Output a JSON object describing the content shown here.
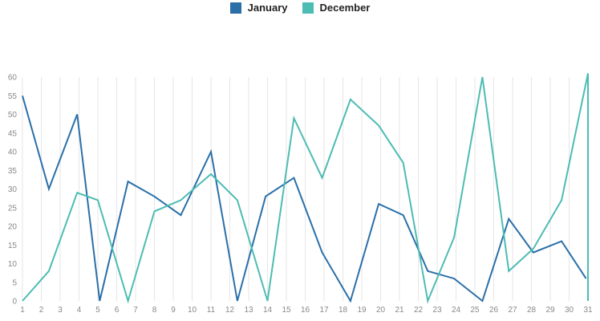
{
  "chart_data": {
    "type": "line",
    "x": [
      1,
      2,
      3,
      4,
      5,
      6,
      7,
      8,
      9,
      10,
      11,
      12,
      13,
      14,
      15,
      16,
      17,
      18,
      19,
      20,
      21,
      22,
      23,
      24,
      25,
      26,
      27,
      28,
      29,
      30,
      31
    ],
    "xlabels": [
      "1",
      "2",
      "3",
      "4",
      "5",
      "6",
      "7",
      "8",
      "9",
      "10",
      "11",
      "12",
      "13",
      "14",
      "15",
      "16",
      "17",
      "18",
      "19",
      "20",
      "21",
      "22",
      "23",
      "24",
      "25",
      "26",
      "27",
      "28",
      "29",
      "30",
      "31"
    ],
    "ylim": [
      0,
      60
    ],
    "yticks": [
      "0",
      "5",
      "10",
      "15",
      "20",
      "25",
      "30",
      "35",
      "40",
      "45",
      "50",
      "55",
      "60"
    ],
    "grid": "vertical",
    "legend": "top-center",
    "series": [
      {
        "name": "January",
        "color": "#2a6fa8",
        "points": [
          [
            1,
            55
          ],
          [
            2.4,
            30
          ],
          [
            3.9,
            50
          ],
          [
            5.1,
            0
          ],
          [
            6.6,
            32
          ],
          [
            8,
            28
          ],
          [
            9.4,
            23
          ],
          [
            11,
            40
          ],
          [
            12.4,
            0
          ],
          [
            13.9,
            28
          ],
          [
            15.4,
            33
          ],
          [
            16.9,
            13
          ],
          [
            18.4,
            0
          ],
          [
            19.9,
            26
          ],
          [
            21.2,
            23
          ],
          [
            22.5,
            8
          ],
          [
            23.9,
            6
          ],
          [
            25.4,
            0
          ],
          [
            26.8,
            22
          ],
          [
            28.1,
            13
          ],
          [
            29.6,
            16
          ],
          [
            30.9,
            6
          ]
        ]
      },
      {
        "name": "December",
        "color": "#4dbcb3",
        "points": [
          [
            1,
            0
          ],
          [
            2.4,
            8
          ],
          [
            3.9,
            29
          ],
          [
            5,
            27
          ],
          [
            6.6,
            0
          ],
          [
            8,
            24
          ],
          [
            9.4,
            27
          ],
          [
            11,
            34
          ],
          [
            12.4,
            27
          ],
          [
            14,
            0
          ],
          [
            15.4,
            49
          ],
          [
            16.9,
            33
          ],
          [
            18.4,
            54
          ],
          [
            19.9,
            47
          ],
          [
            21.2,
            37
          ],
          [
            22.5,
            0
          ],
          [
            23.9,
            17
          ],
          [
            25.4,
            60
          ],
          [
            26.8,
            8
          ],
          [
            28.1,
            14
          ],
          [
            29.6,
            27
          ],
          [
            31,
            61
          ],
          [
            31,
            0
          ]
        ]
      }
    ]
  }
}
